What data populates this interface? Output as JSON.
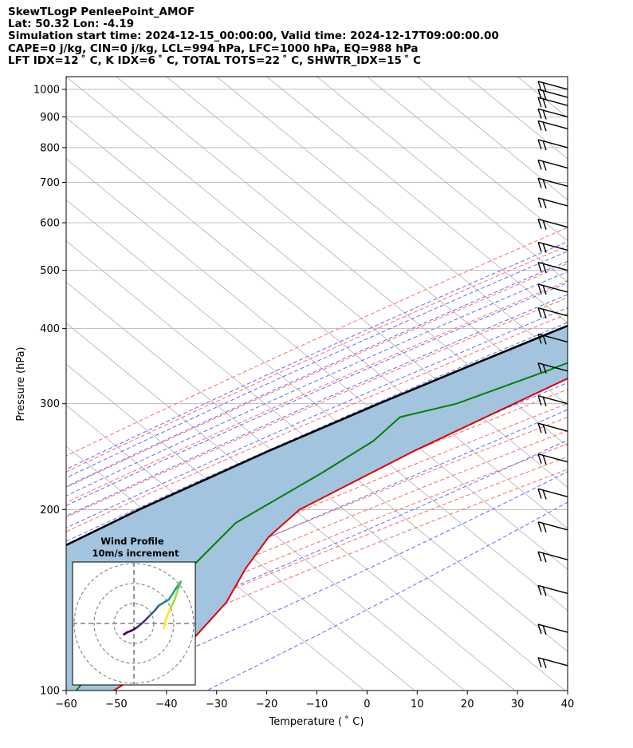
{
  "header": {
    "line1": "SkewTLogP PenleePoint_AMOF",
    "line2": "Lat: 50.32   Lon: -4.19",
    "line3": "Simulation start time: 2024-12-15_00:00:00, Valid time: 2024-12-17T09:00:00.00",
    "line4": "CAPE=0 j/kg, CIN=0 j/kg, LCL=994 hPa, LFC=1000 hPa, EQ=988 hPa",
    "line5": "LFT IDX=12 ˚ C, K IDX=6 ˚ C, TOTAL TOTS=22 ˚ C, SHWTR_IDX=15 ˚ C"
  },
  "chart_data": {
    "type": "skew-t log-p",
    "xlabel": "Temperature ( ˚ C)",
    "ylabel": "Pressure (hPa)",
    "xlim": [
      -60,
      40
    ],
    "ylim": [
      1050,
      100
    ],
    "x_ticks": [
      -60,
      -50,
      -40,
      -30,
      -20,
      -10,
      0,
      10,
      20,
      30,
      40
    ],
    "y_ticks": [
      100,
      200,
      300,
      400,
      500,
      600,
      700,
      800,
      900,
      1000
    ],
    "grid": true,
    "colors": {
      "temperature": "#e00000",
      "dewpoint": "#008000",
      "parcel": "#000000",
      "shading": "#a2c4de",
      "dry_adiabat": "#ff6a6a",
      "moist_adiabat": "#5c6cff",
      "mixing_ratio": "#8a2be2",
      "isotherm": "#b0b0b0"
    },
    "temperature_profile": [
      {
        "p": 1040,
        "t": 10.5
      },
      {
        "p": 1010,
        "t": 10.2
      },
      {
        "p": 990,
        "t": 10.8
      },
      {
        "p": 950,
        "t": 11.2
      },
      {
        "p": 900,
        "t": 10.0
      },
      {
        "p": 860,
        "t": 8.0
      },
      {
        "p": 830,
        "t": 5.6
      },
      {
        "p": 790,
        "t": 1.7
      },
      {
        "p": 760,
        "t": 0.3
      },
      {
        "p": 700,
        "t": -1.6
      },
      {
        "p": 600,
        "t": -8.5
      },
      {
        "p": 500,
        "t": -17.0
      },
      {
        "p": 400,
        "t": -27.0
      },
      {
        "p": 300,
        "t": -40.5
      },
      {
        "p": 250,
        "t": -49.0
      },
      {
        "p": 200,
        "t": -57.5
      },
      {
        "p": 180,
        "t": -57.0
      },
      {
        "p": 160,
        "t": -54.0
      },
      {
        "p": 140,
        "t": -49.5
      },
      {
        "p": 120,
        "t": -47.0
      },
      {
        "p": 100,
        "t": -50.5
      }
    ],
    "dewpoint_profile": [
      {
        "p": 1040,
        "t": 10.0
      },
      {
        "p": 1010,
        "t": 7.5
      },
      {
        "p": 980,
        "t": 2.5
      },
      {
        "p": 960,
        "t": -7.0
      },
      {
        "p": 920,
        "t": -15.0
      },
      {
        "p": 860,
        "t": -21.0
      },
      {
        "p": 810,
        "t": -14.0
      },
      {
        "p": 785,
        "t": -1.2
      },
      {
        "p": 750,
        "t": -0.5
      },
      {
        "p": 700,
        "t": -3.0
      },
      {
        "p": 600,
        "t": -11.5
      },
      {
        "p": 500,
        "t": -20.0
      },
      {
        "p": 450,
        "t": -24.5
      },
      {
        "p": 400,
        "t": -30.5
      },
      {
        "p": 340,
        "t": -42.0
      },
      {
        "p": 300,
        "t": -52.0
      },
      {
        "p": 285,
        "t": -60.0
      },
      {
        "p": 260,
        "t": -59.5
      },
      {
        "p": 230,
        "t": -62.0
      },
      {
        "p": 190,
        "t": -67.0
      },
      {
        "p": 160,
        "t": -65.0
      },
      {
        "p": 145,
        "t": -65.5
      },
      {
        "p": 100,
        "t": -58.0
      }
    ],
    "parcel_profile": [
      {
        "p": 1040,
        "t": 10.3
      },
      {
        "p": 1000,
        "t": 7.3
      },
      {
        "p": 950,
        "t": 4.6
      },
      {
        "p": 900,
        "t": 1.8
      },
      {
        "p": 850,
        "t": -1.3
      },
      {
        "p": 800,
        "t": -4.7
      },
      {
        "p": 750,
        "t": -8.6
      },
      {
        "p": 700,
        "t": -12.8
      },
      {
        "p": 650,
        "t": -17.5
      },
      {
        "p": 600,
        "t": -22.7
      },
      {
        "p": 550,
        "t": -28.2
      },
      {
        "p": 500,
        "t": -34.5
      },
      {
        "p": 450,
        "t": -41.5
      },
      {
        "p": 400,
        "t": -49.5
      },
      {
        "p": 350,
        "t": -58.0
      },
      {
        "p": 300,
        "t": -67.5
      },
      {
        "p": 250,
        "t": -78.0
      },
      {
        "p": 200,
        "t": -89.5
      },
      {
        "p": 150,
        "t": -102.0
      },
      {
        "p": 100,
        "t": -117.0
      }
    ],
    "wind_barb_pressures": [
      1000,
      970,
      940,
      900,
      860,
      800,
      740,
      690,
      640,
      590,
      540,
      500,
      460,
      420,
      380,
      340,
      300,
      270,
      240,
      210,
      185,
      165,
      145,
      125,
      110
    ],
    "inset": {
      "title": "Wind Profile",
      "subtitle": "10m/s increment",
      "ring_count": 3,
      "hodograph": [
        {
          "u": -0.5,
          "v": -0.55
        },
        {
          "u": -0.35,
          "v": -0.45
        },
        {
          "u": -0.1,
          "v": -0.35
        },
        {
          "u": 0.15,
          "v": -0.2
        },
        {
          "u": 0.45,
          "v": 0.05
        },
        {
          "u": 0.75,
          "v": 0.35
        },
        {
          "u": 1.05,
          "v": 0.65
        },
        {
          "u": 1.25,
          "v": 0.9
        },
        {
          "u": 1.5,
          "v": 1.05
        },
        {
          "u": 1.75,
          "v": 1.2
        },
        {
          "u": 1.95,
          "v": 1.5
        },
        {
          "u": 2.1,
          "v": 1.75
        },
        {
          "u": 2.25,
          "v": 1.95
        },
        {
          "u": 2.35,
          "v": 2.1
        },
        {
          "u": 2.2,
          "v": 1.7
        },
        {
          "u": 2.05,
          "v": 1.2
        },
        {
          "u": 1.8,
          "v": 0.7
        },
        {
          "u": 1.6,
          "v": 0.2
        },
        {
          "u": 1.5,
          "v": -0.25
        }
      ]
    }
  }
}
